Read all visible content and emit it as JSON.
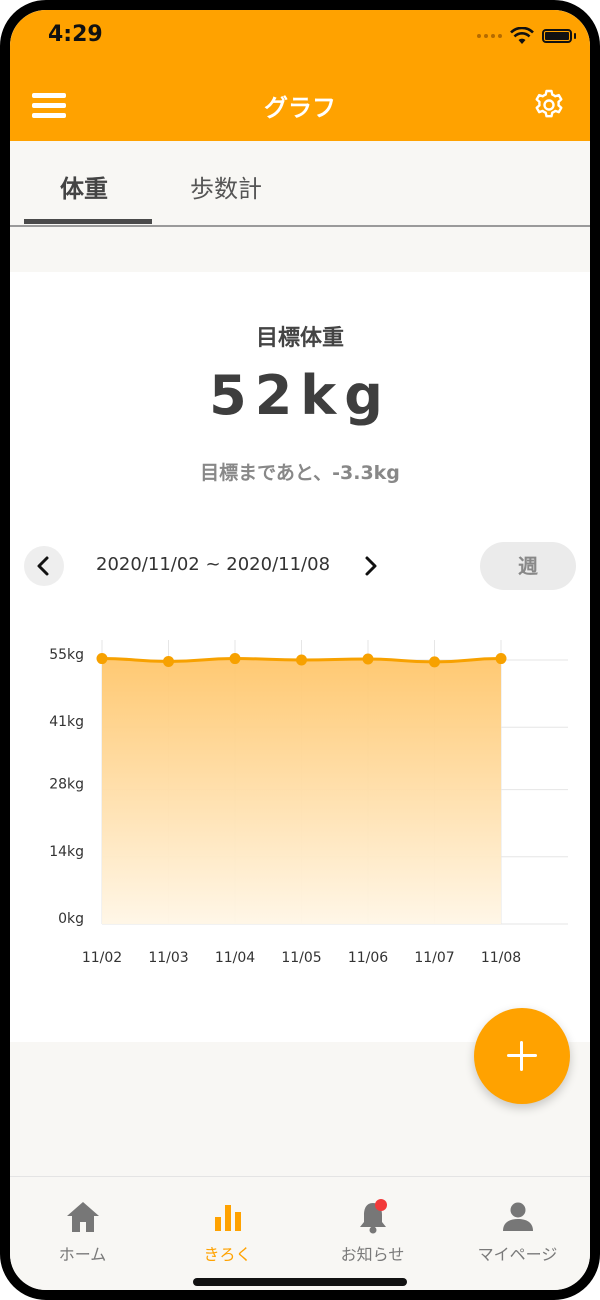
{
  "status_bar": {
    "time": "4:29"
  },
  "header": {
    "title": "グラフ",
    "menu_icon": "hamburger-menu-icon",
    "settings_icon": "gear-icon"
  },
  "tabs": [
    {
      "label": "体重",
      "active": true
    },
    {
      "label": "歩数計",
      "active": false
    }
  ],
  "goal": {
    "label": "目標体重",
    "value": "52kg",
    "remaining": "目標まであと、-3.3kg"
  },
  "date_nav": {
    "range": "2020/11/02 ~ 2020/11/08",
    "period_label": "週"
  },
  "colors": {
    "accent": "#ffa200",
    "line": "#f7a100",
    "fill_top": "#ffc66b",
    "fill_bottom": "#fff6e6"
  },
  "chart_data": {
    "type": "area",
    "categories": [
      "11/02",
      "11/03",
      "11/04",
      "11/05",
      "11/06",
      "11/07",
      "11/08"
    ],
    "values": [
      55.3,
      54.7,
      55.3,
      55.0,
      55.2,
      54.6,
      55.3
    ],
    "y_ticks": [
      0,
      14,
      28,
      41,
      55
    ],
    "y_tick_labels": [
      "0kg",
      "14kg",
      "28kg",
      "41kg",
      "55kg"
    ],
    "ylim": [
      0,
      55
    ],
    "grid": true
  },
  "fab": {
    "icon": "plus-icon"
  },
  "bottom_nav": [
    {
      "label": "ホーム",
      "icon": "home-icon",
      "active": false
    },
    {
      "label": "きろく",
      "icon": "bar-chart-icon",
      "active": true
    },
    {
      "label": "お知らせ",
      "icon": "bell-icon",
      "active": false,
      "badge": true
    },
    {
      "label": "マイページ",
      "icon": "person-icon",
      "active": false
    }
  ]
}
